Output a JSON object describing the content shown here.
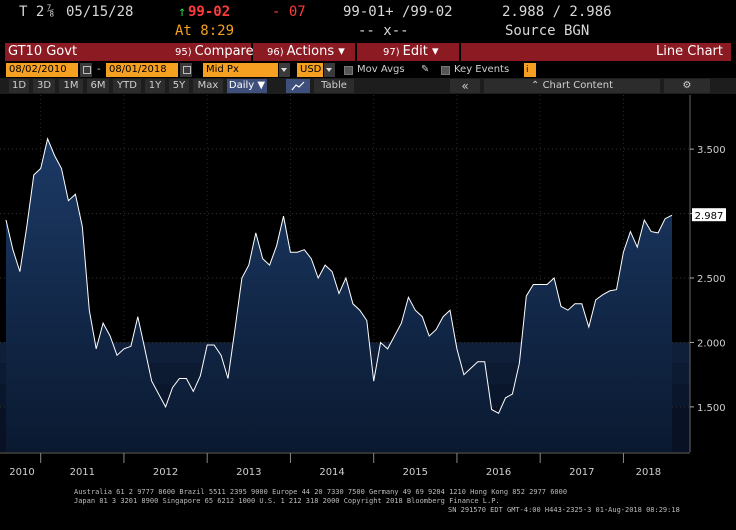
{
  "quote": {
    "ticker": "T 2",
    "coupon_frac": "⅞",
    "maturity": "05/15/28",
    "price": "99-02",
    "change": "- 07",
    "bid_ask": "99-01+ /99-02",
    "yields": "2.988 / 2.986",
    "time": "At 8:29",
    "sizes": "-- x--",
    "source": "Source BGN"
  },
  "function_bar": {
    "security": "GT10 Govt",
    "compare_num": "95)",
    "compare_label": "Compare",
    "actions_num": "96)",
    "actions_label": "Actions",
    "edit_num": "97)",
    "edit_label": "Edit",
    "chart_label": "Line Chart"
  },
  "params": {
    "start_date": "08/02/2010",
    "end_date": "08/01/2018",
    "field": "Mid Px",
    "currency": "USD",
    "mov_avgs": "Mov Avgs",
    "key_events": "Key Events"
  },
  "toolbar": {
    "periods": [
      "1D",
      "3D",
      "1M",
      "6M",
      "YTD",
      "1Y",
      "5Y",
      "Max"
    ],
    "frequency": "Daily",
    "table_label": "Table",
    "chart_content": "Chart Content"
  },
  "chart_data": {
    "type": "area",
    "series": [
      {
        "x": [
          "2010-08",
          "2010-09",
          "2010-10",
          "2010-11",
          "2010-12",
          "2011-01",
          "2011-02",
          "2011-03",
          "2011-04",
          "2011-05",
          "2011-06",
          "2011-07",
          "2011-08",
          "2011-09",
          "2011-10",
          "2011-11",
          "2011-12",
          "2012-01",
          "2012-02",
          "2012-03",
          "2012-04",
          "2012-05",
          "2012-06",
          "2012-07",
          "2012-08",
          "2012-09",
          "2012-10",
          "2012-11",
          "2012-12",
          "2013-01",
          "2013-02",
          "2013-03",
          "2013-04",
          "2013-05",
          "2013-06",
          "2013-07",
          "2013-08",
          "2013-09",
          "2013-10",
          "2013-11",
          "2013-12",
          "2014-01",
          "2014-02",
          "2014-03",
          "2014-04",
          "2014-05",
          "2014-06",
          "2014-07",
          "2014-08",
          "2014-09",
          "2014-10",
          "2014-11",
          "2014-12",
          "2015-01",
          "2015-02",
          "2015-03",
          "2015-04",
          "2015-05",
          "2015-06",
          "2015-07",
          "2015-08",
          "2015-09",
          "2015-10",
          "2015-11",
          "2015-12",
          "2016-01",
          "2016-02",
          "2016-03",
          "2016-04",
          "2016-05",
          "2016-06",
          "2016-07",
          "2016-08",
          "2016-09",
          "2016-10",
          "2016-11",
          "2016-12",
          "2017-01",
          "2017-02",
          "2017-03",
          "2017-04",
          "2017-05",
          "2017-06",
          "2017-07",
          "2017-08",
          "2017-09",
          "2017-10",
          "2017-11",
          "2017-12",
          "2018-01",
          "2018-02",
          "2018-03",
          "2018-04",
          "2018-05",
          "2018-06",
          "2018-07",
          "2018-08"
        ],
        "values": [
          2.95,
          2.72,
          2.55,
          2.9,
          3.3,
          3.35,
          3.58,
          3.45,
          3.35,
          3.1,
          3.15,
          2.9,
          2.25,
          1.95,
          2.15,
          2.05,
          1.9,
          1.95,
          1.97,
          2.2,
          1.95,
          1.7,
          1.6,
          1.5,
          1.65,
          1.72,
          1.72,
          1.62,
          1.74,
          1.98,
          1.98,
          1.9,
          1.72,
          2.1,
          2.5,
          2.6,
          2.85,
          2.65,
          2.6,
          2.75,
          2.98,
          2.7,
          2.7,
          2.72,
          2.65,
          2.5,
          2.6,
          2.55,
          2.38,
          2.5,
          2.3,
          2.25,
          2.17,
          1.7,
          2.0,
          1.95,
          2.05,
          2.15,
          2.35,
          2.25,
          2.2,
          2.05,
          2.1,
          2.2,
          2.25,
          1.95,
          1.75,
          1.8,
          1.85,
          1.85,
          1.48,
          1.45,
          1.57,
          1.6,
          1.84,
          2.36,
          2.45,
          2.45,
          2.45,
          2.5,
          2.28,
          2.25,
          2.3,
          2.3,
          2.12,
          2.33,
          2.37,
          2.4,
          2.41,
          2.7,
          2.86,
          2.74,
          2.95,
          2.86,
          2.85,
          2.96,
          2.987
        ]
      }
    ],
    "last_value_label": "2.987",
    "y_ticks": [
      "3.500",
      "3.000",
      "2.500",
      "2.000",
      "1.500"
    ],
    "x_tick_labels": [
      "2010",
      "2011",
      "2012",
      "2013",
      "2014",
      "2015",
      "2016",
      "2017",
      "2018"
    ],
    "ylim": [
      1.15,
      3.92
    ],
    "grid": true,
    "colors": {
      "line": "#ffffff",
      "fill_top": "#1c3a66",
      "fill_bottom": "#0a1930",
      "last_label_bg": "#ffffff"
    }
  },
  "footer": {
    "line1": "Australia 61 2 9777 8600 Brazil 5511 2395 9000 Europe 44 20 7330 7500 Germany 49 69 9204 1210 Hong Kong 852 2977 6000",
    "line2": "Japan 81 3 3201 8900        Singapore 65 6212 1000       U.S. 1 212 318 2000          Copyright 2018 Bloomberg Finance L.P.",
    "line3": "SN 291570 EDT  GMT-4:00 H443-2325-3 01-Aug-2018 08:29:18"
  }
}
